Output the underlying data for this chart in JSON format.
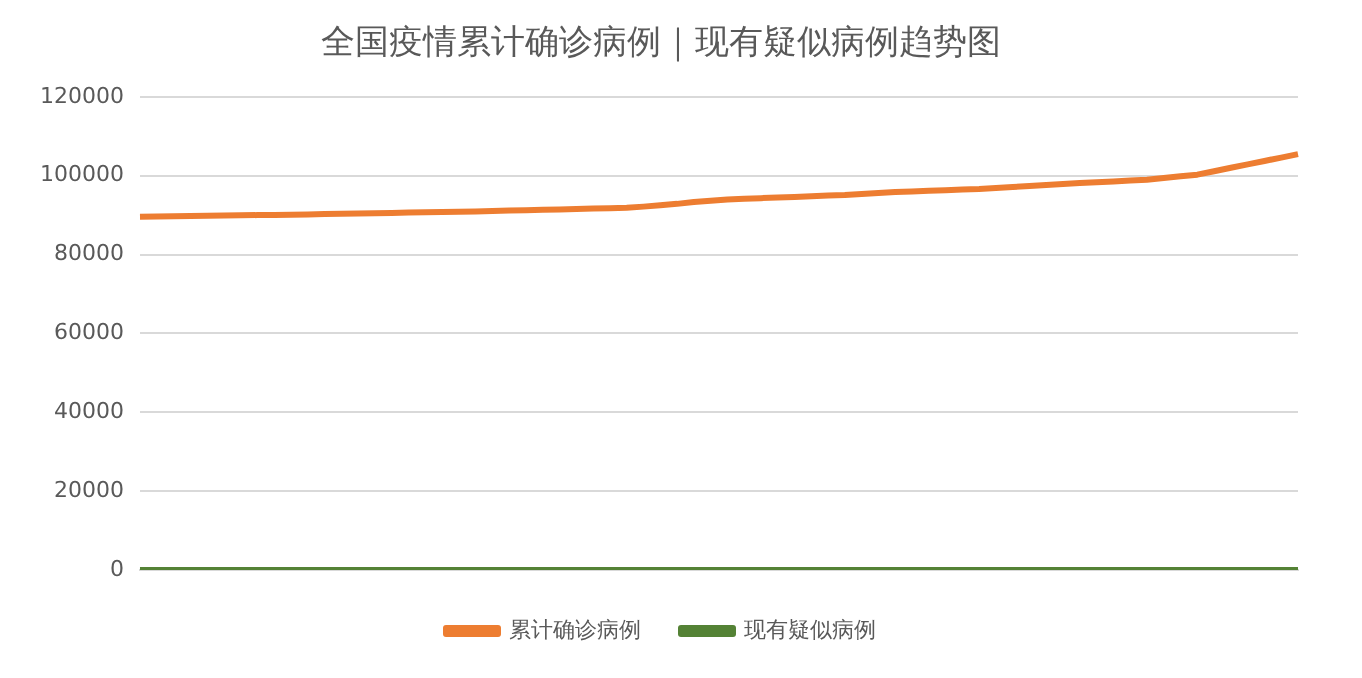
{
  "chart_data": {
    "type": "line",
    "title": "全国疫情累计确诊病例｜现有疑似病例趋势图",
    "categories": [
      null,
      null,
      null,
      null,
      null,
      null,
      null,
      null,
      null,
      null,
      null,
      null,
      null,
      null,
      null,
      null,
      null,
      null,
      null,
      null,
      null,
      null,
      null,
      null,
      null,
      null,
      null,
      null,
      null,
      null,
      null,
      null,
      null,
      null,
      null,
      null,
      null,
      null,
      null,
      null,
      null,
      null,
      null,
      null,
      null,
      null,
      null,
      null,
      null,
      null,
      null,
      null,
      null,
      null,
      null,
      null,
      null,
      null,
      null,
      null,
      null,
      null,
      null,
      null,
      null,
      null,
      null,
      null,
      null,
      null
    ],
    "series": [
      {
        "name": "累计确诊病例",
        "color": "#ed7d31",
        "values": [
          89610,
          89670,
          89720,
          89780,
          89830,
          89890,
          89940,
          90000,
          90050,
          90110,
          90180,
          90250,
          90330,
          90400,
          90480,
          90560,
          90630,
          90710,
          90790,
          90860,
          90940,
          91040,
          91140,
          91250,
          91350,
          91450,
          91560,
          91660,
          91760,
          91870,
          92150,
          92500,
          92850,
          93300,
          93650,
          93950,
          94150,
          94300,
          94460,
          94620,
          94780,
          94940,
          95070,
          95380,
          95600,
          95840,
          96000,
          96150,
          96310,
          96470,
          96620,
          96870,
          97120,
          97380,
          97640,
          97900,
          98110,
          98320,
          98530,
          98750,
          98960,
          99390,
          99830,
          100260,
          101130,
          102000,
          102860,
          103730,
          104590,
          105450
        ]
      },
      {
        "name": "现有疑似病例",
        "color": "#548235",
        "values": [
          0,
          0,
          0,
          0,
          0,
          0,
          0,
          0,
          0,
          0,
          0,
          0,
          0,
          0,
          0,
          0,
          0,
          0,
          0,
          0,
          0,
          0,
          0,
          0,
          0,
          0,
          0,
          0,
          0,
          0,
          0,
          0,
          0,
          0,
          0,
          0,
          0,
          0,
          0,
          0,
          0,
          0,
          0,
          0,
          0,
          0,
          0,
          0,
          0,
          0,
          0,
          0,
          0,
          0,
          0,
          0,
          0,
          0,
          0,
          0,
          0,
          0,
          0,
          0,
          0,
          0,
          0,
          0,
          0,
          0
        ]
      }
    ],
    "ylim": [
      0,
      120000
    ],
    "yticks": [
      0,
      20000,
      40000,
      60000,
      80000,
      100000,
      120000
    ],
    "grid": "y",
    "legend": "bottom",
    "marker": "none",
    "line_style": "solid",
    "tick_labels": "y"
  }
}
